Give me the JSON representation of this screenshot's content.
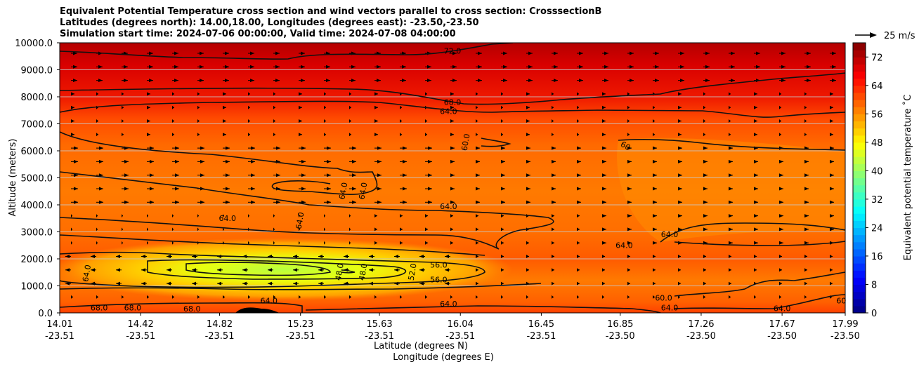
{
  "title_lines": [
    "Equivalent Potential Temperature cross section and wind vectors parallel to cross section: CrosssectionB",
    "Latitudes (degrees north): 14.00,18.00, Longitudes (degrees east): -23.50,-23.50",
    "Simulation start time: 2024-07-06 00:00:00, Valid time: 2024-07-08 04:00:00"
  ],
  "chart_data": {
    "type": "heatmap",
    "title": "Equivalent Potential Temperature cross section and wind vectors parallel to cross section: CrosssectionB",
    "xlabel": "Latitude (degrees N)",
    "xlabel2": "Longitude (degrees E)",
    "ylabel": "Altitude (meters)",
    "ylim": [
      0,
      10000
    ],
    "xlim": [
      14.01,
      17.99
    ],
    "y_ticks": [
      0,
      1000,
      2000,
      3000,
      4000,
      5000,
      6000,
      7000,
      8000,
      9000,
      10000
    ],
    "y_tick_labels": [
      "0.0",
      "1000.0",
      "2000.0",
      "3000.0",
      "4000.0",
      "5000.0",
      "6000.0",
      "7000.0",
      "8000.0",
      "9000.0",
      "10000.0"
    ],
    "x_ticks": [
      14.01,
      14.42,
      14.82,
      15.23,
      15.63,
      16.04,
      16.45,
      16.85,
      17.26,
      17.67,
      17.99
    ],
    "x_tick_lat_labels": [
      "14.01",
      "14.42",
      "14.82",
      "15.23",
      "15.63",
      "16.04",
      "16.45",
      "16.85",
      "17.26",
      "17.67",
      "17.99"
    ],
    "x_tick_lon_labels": [
      "-23.51",
      "-23.51",
      "-23.51",
      "-23.51",
      "-23.51",
      "-23.51",
      "-23.51",
      "-23.50",
      "-23.50",
      "-23.50",
      "-23.50"
    ],
    "grid": "horizontal",
    "colorbar": {
      "label": "Equivalent potential temperature ˚C",
      "range": [
        0,
        76
      ],
      "ticks": [
        0,
        8,
        16,
        24,
        32,
        40,
        48,
        56,
        64,
        72
      ],
      "colormap": "jet"
    },
    "wind_reference": {
      "label": "25 m/s",
      "speed": 25
    },
    "contour_labels": [
      {
        "text": "72.0",
        "x": 16.0,
        "y": 9600
      },
      {
        "text": "68.0",
        "x": 16.0,
        "y": 7700
      },
      {
        "text": "64.0",
        "x": 15.98,
        "y": 7370
      },
      {
        "text": "60.0",
        "x": 16.08,
        "y": 6300
      },
      {
        "text": "60",
        "x": 16.87,
        "y": 6100
      },
      {
        "text": "64.0",
        "x": 14.86,
        "y": 3400
      },
      {
        "text": "64.0",
        "x": 15.24,
        "y": 3400
      },
      {
        "text": "64.0",
        "x": 15.46,
        "y": 4500
      },
      {
        "text": "64.0",
        "x": 15.56,
        "y": 4500
      },
      {
        "text": "64.0",
        "x": 15.98,
        "y": 3850
      },
      {
        "text": "64.0",
        "x": 16.87,
        "y": 2400
      },
      {
        "text": "64.0",
        "x": 17.1,
        "y": 2800
      },
      {
        "text": "56.0",
        "x": 15.93,
        "y": 1680
      },
      {
        "text": "56.0",
        "x": 15.93,
        "y": 1130
      },
      {
        "text": "52.0",
        "x": 15.81,
        "y": 1500
      },
      {
        "text": "48.0",
        "x": 15.44,
        "y": 1500
      },
      {
        "text": "48.0",
        "x": 15.56,
        "y": 1500
      },
      {
        "text": "64.0",
        "x": 14.16,
        "y": 1450
      },
      {
        "text": "68.0",
        "x": 14.21,
        "y": 90
      },
      {
        "text": "68.0",
        "x": 14.38,
        "y": 90
      },
      {
        "text": "68.0",
        "x": 14.68,
        "y": 50
      },
      {
        "text": "64.0",
        "x": 15.07,
        "y": 350
      },
      {
        "text": "64.0",
        "x": 15.98,
        "y": 230
      },
      {
        "text": "60.0",
        "x": 17.07,
        "y": 450
      },
      {
        "text": "64.0",
        "x": 17.1,
        "y": 90
      },
      {
        "text": "64.0",
        "x": 17.67,
        "y": 60
      },
      {
        "text": "60",
        "x": 17.97,
        "y": 350
      }
    ],
    "theta_e_field": {
      "background_by_altitude": [
        {
          "alt": 10000,
          "value": 73
        },
        {
          "alt": 9000,
          "value": 71
        },
        {
          "alt": 8000,
          "value": 67
        },
        {
          "alt": 7000,
          "value": 64
        },
        {
          "alt": 6000,
          "value": 63
        },
        {
          "alt": 5000,
          "value": 62
        },
        {
          "alt": 4000,
          "value": 63
        },
        {
          "alt": 3000,
          "value": 64
        },
        {
          "alt": 2000,
          "value": 62
        },
        {
          "alt": 1000,
          "value": 63
        },
        {
          "alt": 0,
          "value": 66
        }
      ],
      "minimum": {
        "value": 50,
        "x": 15.1,
        "y": 1600
      }
    }
  }
}
